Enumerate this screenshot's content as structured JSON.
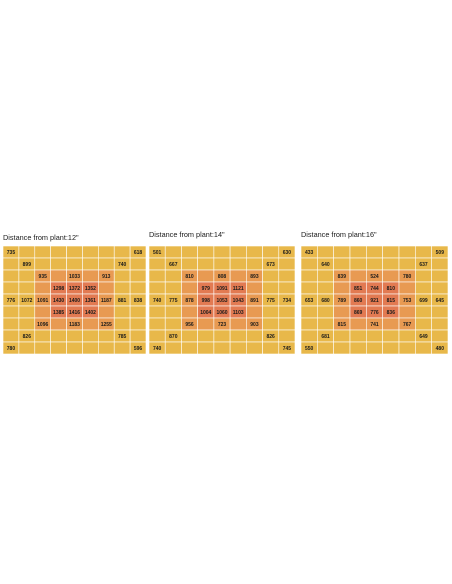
{
  "chart_data": [
    {
      "type": "heatmap",
      "title": "Distance from plant:12\"",
      "rows": 9,
      "cols": 9,
      "cells": [
        {
          "row": 0,
          "col": 0,
          "value": 735
        },
        {
          "row": 0,
          "col": 8,
          "value": 618
        },
        {
          "row": 1,
          "col": 1,
          "value": 899
        },
        {
          "row": 1,
          "col": 7,
          "value": 740
        },
        {
          "row": 2,
          "col": 2,
          "value": 935
        },
        {
          "row": 2,
          "col": 4,
          "value": 1033
        },
        {
          "row": 2,
          "col": 6,
          "value": 913
        },
        {
          "row": 3,
          "col": 3,
          "value": 1298
        },
        {
          "row": 3,
          "col": 4,
          "value": 1372
        },
        {
          "row": 3,
          "col": 5,
          "value": 1352
        },
        {
          "row": 4,
          "col": 0,
          "value": 776
        },
        {
          "row": 4,
          "col": 1,
          "value": 1072
        },
        {
          "row": 4,
          "col": 2,
          "value": 1091
        },
        {
          "row": 4,
          "col": 3,
          "value": 1430
        },
        {
          "row": 4,
          "col": 4,
          "value": 1400
        },
        {
          "row": 4,
          "col": 5,
          "value": 1361
        },
        {
          "row": 4,
          "col": 6,
          "value": 1187
        },
        {
          "row": 4,
          "col": 7,
          "value": 881
        },
        {
          "row": 4,
          "col": 8,
          "value": 838
        },
        {
          "row": 5,
          "col": 3,
          "value": 1385
        },
        {
          "row": 5,
          "col": 4,
          "value": 1416
        },
        {
          "row": 5,
          "col": 5,
          "value": 1402
        },
        {
          "row": 6,
          "col": 2,
          "value": 1096
        },
        {
          "row": 6,
          "col": 4,
          "value": 1183
        },
        {
          "row": 6,
          "col": 6,
          "value": 1255
        },
        {
          "row": 7,
          "col": 1,
          "value": 826
        },
        {
          "row": 7,
          "col": 7,
          "value": 785
        },
        {
          "row": 8,
          "col": 0,
          "value": 780
        },
        {
          "row": 8,
          "col": 8,
          "value": 596
        }
      ]
    },
    {
      "type": "heatmap",
      "title": "Distance from plant:14\"",
      "rows": 9,
      "cols": 9,
      "cells": [
        {
          "row": 0,
          "col": 0,
          "value": 501
        },
        {
          "row": 0,
          "col": 8,
          "value": 630
        },
        {
          "row": 1,
          "col": 1,
          "value": 667
        },
        {
          "row": 1,
          "col": 7,
          "value": 673
        },
        {
          "row": 2,
          "col": 2,
          "value": 810
        },
        {
          "row": 2,
          "col": 4,
          "value": 808
        },
        {
          "row": 2,
          "col": 6,
          "value": 893
        },
        {
          "row": 3,
          "col": 3,
          "value": 979
        },
        {
          "row": 3,
          "col": 4,
          "value": 1091
        },
        {
          "row": 3,
          "col": 5,
          "value": 1121
        },
        {
          "row": 4,
          "col": 0,
          "value": 740
        },
        {
          "row": 4,
          "col": 1,
          "value": 775
        },
        {
          "row": 4,
          "col": 2,
          "value": 878
        },
        {
          "row": 4,
          "col": 3,
          "value": 998
        },
        {
          "row": 4,
          "col": 4,
          "value": 1053
        },
        {
          "row": 4,
          "col": 5,
          "value": 1043
        },
        {
          "row": 4,
          "col": 6,
          "value": 891
        },
        {
          "row": 4,
          "col": 7,
          "value": 775
        },
        {
          "row": 4,
          "col": 8,
          "value": 734
        },
        {
          "row": 5,
          "col": 3,
          "value": 1004
        },
        {
          "row": 5,
          "col": 4,
          "value": 1060
        },
        {
          "row": 5,
          "col": 5,
          "value": 1103
        },
        {
          "row": 6,
          "col": 2,
          "value": 956
        },
        {
          "row": 6,
          "col": 4,
          "value": 723
        },
        {
          "row": 6,
          "col": 6,
          "value": 903
        },
        {
          "row": 7,
          "col": 1,
          "value": 870
        },
        {
          "row": 7,
          "col": 7,
          "value": 826
        },
        {
          "row": 8,
          "col": 0,
          "value": 740
        },
        {
          "row": 8,
          "col": 8,
          "value": 745
        }
      ]
    },
    {
      "type": "heatmap",
      "title": "Distance from plant:16\"",
      "rows": 9,
      "cols": 9,
      "cells": [
        {
          "row": 0,
          "col": 0,
          "value": 433
        },
        {
          "row": 0,
          "col": 8,
          "value": 509
        },
        {
          "row": 1,
          "col": 1,
          "value": 640
        },
        {
          "row": 1,
          "col": 7,
          "value": 637
        },
        {
          "row": 2,
          "col": 2,
          "value": 839
        },
        {
          "row": 2,
          "col": 4,
          "value": 524
        },
        {
          "row": 2,
          "col": 6,
          "value": 780
        },
        {
          "row": 3,
          "col": 3,
          "value": 851
        },
        {
          "row": 3,
          "col": 4,
          "value": 744
        },
        {
          "row": 3,
          "col": 5,
          "value": 810
        },
        {
          "row": 4,
          "col": 0,
          "value": 653
        },
        {
          "row": 4,
          "col": 1,
          "value": 680
        },
        {
          "row": 4,
          "col": 2,
          "value": 789
        },
        {
          "row": 4,
          "col": 3,
          "value": 860
        },
        {
          "row": 4,
          "col": 4,
          "value": 921
        },
        {
          "row": 4,
          "col": 5,
          "value": 815
        },
        {
          "row": 4,
          "col": 6,
          "value": 753
        },
        {
          "row": 4,
          "col": 7,
          "value": 699
        },
        {
          "row": 4,
          "col": 8,
          "value": 645
        },
        {
          "row": 5,
          "col": 3,
          "value": 869
        },
        {
          "row": 5,
          "col": 4,
          "value": 776
        },
        {
          "row": 5,
          "col": 5,
          "value": 836
        },
        {
          "row": 6,
          "col": 2,
          "value": 815
        },
        {
          "row": 6,
          "col": 4,
          "value": 741
        },
        {
          "row": 6,
          "col": 6,
          "value": 767
        },
        {
          "row": 7,
          "col": 1,
          "value": 681
        },
        {
          "row": 7,
          "col": 7,
          "value": 649
        },
        {
          "row": 8,
          "col": 0,
          "value": 550
        },
        {
          "row": 8,
          "col": 8,
          "value": 480
        }
      ]
    }
  ],
  "colors": {
    "outer": "#e8b84a",
    "middle": "#e89a52",
    "inner": "#e27a52",
    "grid": "#ffffff",
    "text": "#1a1a1a"
  }
}
